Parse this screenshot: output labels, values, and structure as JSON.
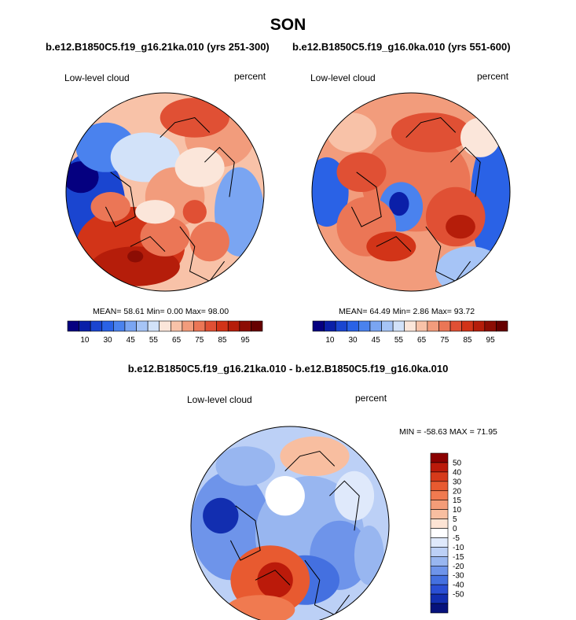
{
  "season": "SON",
  "panels": [
    {
      "case_title": "b.e12.B1850C5.f19_g16.21ka.010 (yrs 251-300)",
      "variable": "Low-level cloud",
      "units": "percent",
      "stats": "MEAN=  58.61  Min=   0.00  Max=  98.00"
    },
    {
      "case_title": "b.e12.B1850C5.f19_g16.0ka.010 (yrs 551-600)",
      "variable": "Low-level cloud",
      "units": "percent",
      "stats": "MEAN=  64.49  Min=   2.86  Max=  93.72"
    }
  ],
  "difference": {
    "title": "b.e12.B1850C5.f19_g16.21ka.010 - b.e12.B1850C5.f19_g16.0ka.010",
    "variable": "Low-level cloud",
    "units": "percent",
    "stats": "MIN = -58.63 MAX =  71.95"
  },
  "chart_data": [
    {
      "type": "heatmap",
      "projection": "north polar stereographic",
      "variable": "Low-level cloud",
      "units": "percent",
      "mean": 58.61,
      "min": 0.0,
      "max": 98.0,
      "colorbar_levels": [
        5,
        10,
        20,
        30,
        40,
        45,
        50,
        55,
        60,
        65,
        70,
        75,
        80,
        85,
        90,
        95
      ],
      "colorbar_labels": [
        "10",
        "30",
        "45",
        "55",
        "65",
        "75",
        "85",
        "95"
      ],
      "colors": [
        "#050080",
        "#0a1fa8",
        "#1a45d0",
        "#2a62e6",
        "#4a82ee",
        "#7aa5f2",
        "#a6c4f6",
        "#d2e2f9",
        "#fbe6da",
        "#f8c2a8",
        "#f29c7c",
        "#eb7656",
        "#e05034",
        "#d23418",
        "#b51d0a",
        "#8c0d04",
        "#660000"
      ]
    },
    {
      "type": "heatmap",
      "projection": "north polar stereographic",
      "variable": "Low-level cloud",
      "units": "percent",
      "mean": 64.49,
      "min": 2.86,
      "max": 93.72,
      "colorbar_levels": [
        5,
        10,
        20,
        30,
        40,
        45,
        50,
        55,
        60,
        65,
        70,
        75,
        80,
        85,
        90,
        95
      ],
      "colorbar_labels": [
        "10",
        "30",
        "45",
        "55",
        "65",
        "75",
        "85",
        "95"
      ],
      "colors": [
        "#050080",
        "#0a1fa8",
        "#1a45d0",
        "#2a62e6",
        "#4a82ee",
        "#7aa5f2",
        "#a6c4f6",
        "#d2e2f9",
        "#fbe6da",
        "#f8c2a8",
        "#f29c7c",
        "#eb7656",
        "#e05034",
        "#d23418",
        "#b51d0a",
        "#8c0d04",
        "#660000"
      ]
    },
    {
      "type": "heatmap",
      "projection": "north polar stereographic",
      "variable": "Low-level cloud",
      "units": "percent",
      "min": -58.63,
      "max": 71.95,
      "colorbar_labels": [
        "50",
        "40",
        "30",
        "20",
        "15",
        "10",
        "5",
        "0",
        "-5",
        "-10",
        "-15",
        "-20",
        "-30",
        "-40",
        "-50"
      ],
      "colors": [
        "#8b0000",
        "#bb1a0a",
        "#d63a1a",
        "#e85a30",
        "#f07a50",
        "#f49c78",
        "#f8bea0",
        "#fde4d4",
        "#ffffff",
        "#dfe9fb",
        "#bcd0f6",
        "#98b6f0",
        "#6e94ea",
        "#4470e0",
        "#2a4fd4",
        "#122eb0",
        "#06127c"
      ]
    }
  ]
}
